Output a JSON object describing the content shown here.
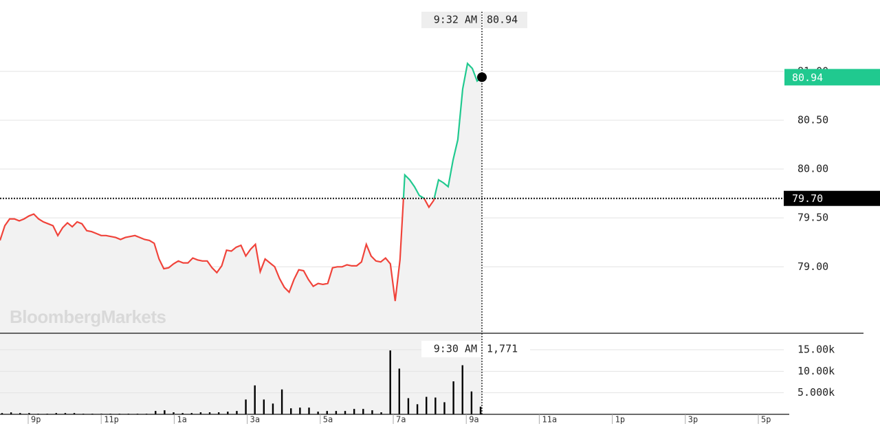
{
  "chart_data": [
    {
      "type": "line",
      "watermark": "BloombergMarkets",
      "values": [
        79.27,
        79.42,
        79.49,
        79.49,
        79.47,
        79.49,
        79.52,
        79.54,
        79.49,
        79.46,
        79.44,
        79.42,
        79.32,
        79.4,
        79.45,
        79.41,
        79.46,
        79.44,
        79.37,
        79.36,
        79.34,
        79.32,
        79.32,
        79.31,
        79.3,
        79.28,
        79.3,
        79.31,
        79.32,
        79.3,
        79.28,
        79.27,
        79.24,
        79.08,
        78.98,
        78.99,
        79.03,
        79.06,
        79.04,
        79.04,
        79.09,
        79.07,
        79.06,
        79.06,
        78.99,
        78.94,
        79.01,
        79.17,
        79.16,
        79.2,
        79.22,
        79.11,
        79.18,
        79.23,
        78.95,
        79.08,
        79.04,
        79.0,
        78.88,
        78.79,
        78.74,
        78.87,
        78.97,
        78.96,
        78.87,
        78.8,
        78.83,
        78.82,
        78.83,
        78.99,
        79.0,
        79.0,
        79.02,
        79.01,
        79.01,
        79.05,
        79.23,
        79.11,
        79.06,
        79.05,
        79.09,
        79.03,
        78.65,
        79.07,
        79.94,
        79.89,
        79.82,
        79.73,
        79.7,
        79.61,
        79.68,
        79.89,
        79.86,
        79.82,
        80.09,
        80.3,
        80.82,
        81.08,
        81.03,
        80.9,
        80.94
      ],
      "colors": {
        "up": "#20c98f",
        "down": "#f0433a"
      },
      "ylim": [
        78.32,
        81.73
      ],
      "yticks": [
        {
          "value": 79,
          "label": "79.00"
        },
        {
          "value": 79.5,
          "label": "79.50"
        },
        {
          "value": 80,
          "label": "80.00"
        },
        {
          "value": 80.5,
          "label": "80.50"
        },
        {
          "value": 81,
          "label": "81.00"
        }
      ],
      "grid": true,
      "reference": {
        "value": 79.7,
        "label": "79.70"
      },
      "last": {
        "value": 80.94,
        "label": "80.94"
      },
      "crosshair_time": "9:32 AM"
    },
    {
      "type": "bar",
      "values": [
        300,
        450,
        300,
        300,
        150,
        150,
        300,
        300,
        300,
        150,
        150,
        150,
        150,
        150,
        150,
        150,
        150,
        780,
        940,
        470,
        300,
        300,
        470,
        470,
        470,
        620,
        780,
        3440,
        6720,
        3440,
        2500,
        5780,
        1400,
        1560,
        1560,
        620,
        780,
        780,
        780,
        1250,
        1250,
        940,
        470,
        14840,
        10620,
        3750,
        2340,
        4060,
        3900,
        2810,
        7660,
        11400,
        5310,
        1771
      ],
      "color": "#000000",
      "ylim": [
        0,
        18830
      ],
      "yticks": [
        {
          "value": 5000,
          "label": "5.000k"
        },
        {
          "value": 10000,
          "label": "10.00k"
        },
        {
          "value": 15000,
          "label": "15.00k"
        }
      ],
      "grid": true,
      "crosshair_time": "9:30 AM",
      "crosshair_label": "1,771",
      "time_labels": [
        "9p",
        "11p",
        "1a",
        "3a",
        "5a",
        "7a",
        "9a",
        "11a",
        "1p",
        "3p",
        "5p"
      ]
    }
  ]
}
